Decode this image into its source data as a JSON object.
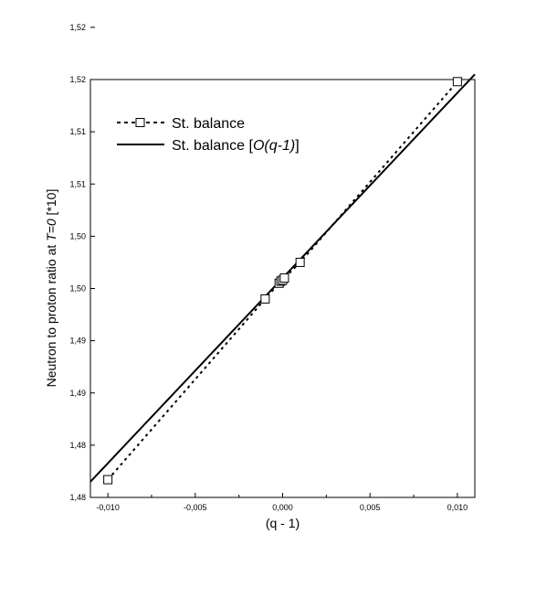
{
  "chart_data": {
    "type": "line",
    "xlabel": "(q - 1)",
    "ylabel_parts": [
      "Neutron to proton ratio at ",
      "T=0",
      " [*10]"
    ],
    "xlim": [
      -0.011,
      0.011
    ],
    "ylim": [
      1.48,
      1.52
    ],
    "x_ticks": [
      {
        "value": -0.01,
        "label": "-0,010"
      },
      {
        "value": -0.005,
        "label": "-0,005"
      },
      {
        "value": 0.0,
        "label": "0,000"
      },
      {
        "value": 0.005,
        "label": "0,005"
      },
      {
        "value": 0.01,
        "label": "0,010"
      }
    ],
    "y_ticks": [
      {
        "value": 1.48,
        "label": "1,48"
      },
      {
        "value": 1.485,
        "label": "1,48"
      },
      {
        "value": 1.49,
        "label": "1,49"
      },
      {
        "value": 1.495,
        "label": "1,49"
      },
      {
        "value": 1.5,
        "label": "1,50"
      },
      {
        "value": 1.505,
        "label": "1,50"
      },
      {
        "value": 1.51,
        "label": "1,51"
      },
      {
        "value": 1.515,
        "label": "1,51"
      },
      {
        "value": 1.52,
        "label": "1,52"
      },
      {
        "value": 1.525,
        "label": "1,52"
      }
    ],
    "series": [
      {
        "name": "St. balance",
        "style": "dotted-with-square-markers",
        "x": [
          -0.01,
          -0.001,
          -0.0002,
          -0.0001,
          0.0,
          0.0001,
          0.001,
          0.01
        ],
        "y": [
          1.4817,
          1.499,
          1.5005,
          1.5007,
          1.5008,
          1.501,
          1.5025,
          1.5198
        ]
      },
      {
        "name": "St. balance [",
        "name_italic": "O(q-1)",
        "name_suffix": "]",
        "style": "solid",
        "x": [
          -0.011,
          0.011
        ],
        "y": [
          1.4815,
          1.5205
        ]
      }
    ],
    "legend": {
      "placement": "top-left"
    },
    "grid": false
  }
}
